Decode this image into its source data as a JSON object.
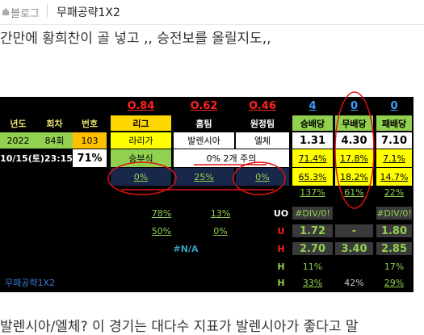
{
  "header": {
    "blog_label": "블로그",
    "blog_name": "무패공략1X2"
  },
  "intro_text": "간만에 황희찬이 골 넣고 ,, 승전보를 올릴지도,,",
  "sheet": {
    "top": [
      "O.84",
      "O.62",
      "O.46",
      "4",
      "0",
      "0"
    ],
    "headers": [
      "년도",
      "회차",
      "번호",
      "리그",
      "홈팀",
      "원정팀",
      "승배당",
      "무배당",
      "패배당"
    ],
    "match": [
      "2022",
      "84회",
      "103",
      "라리가",
      "발렌시아",
      "엘체",
      "1.31",
      "4.30",
      "7.10"
    ],
    "row3": [
      "10/15(토)23:15",
      "71%",
      "승부식",
      "0% 2개 주의",
      "71.4%",
      "17.8%",
      "7.1%"
    ],
    "row4": [
      "0%",
      "25%",
      "0%",
      "65.3%",
      "18.2%",
      "14.7%"
    ],
    "row5": [
      "137%",
      "61%",
      "22%"
    ],
    "stats": [
      [
        "78%",
        "13%",
        "UO",
        "#DIV/0!",
        "#DIV/0!"
      ],
      [
        "50%",
        "0%",
        "U",
        "1.72",
        "-",
        "1.80"
      ],
      [
        "#N/A",
        "H",
        "2.70",
        "3.40",
        "2.85"
      ],
      [
        "H",
        "11%",
        "17%"
      ],
      [
        "H",
        "33%",
        "42%",
        "29%"
      ]
    ],
    "watermark": "무패공략1X2"
  },
  "body_text": "발렌시아/엘체?  이 경기는 대다수  지표가  발렌시아가 좋다고 말"
}
